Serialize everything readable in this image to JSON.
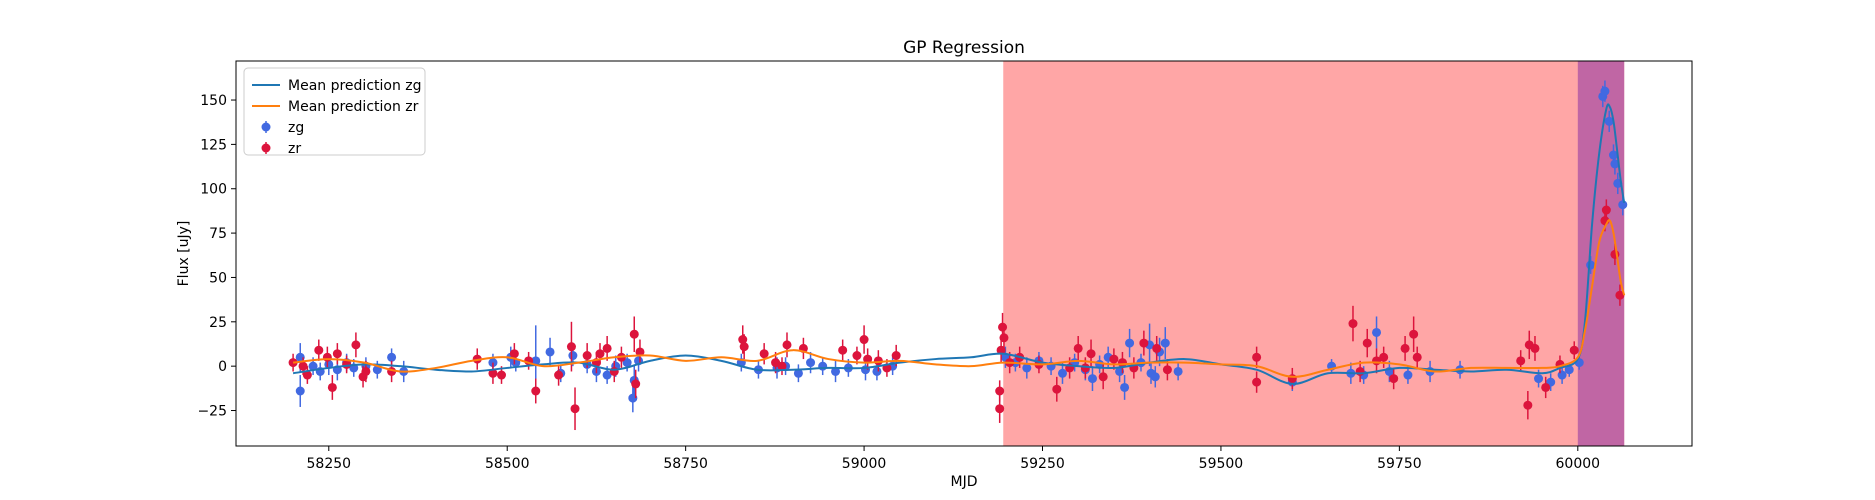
{
  "chart_data": {
    "type": "scatter",
    "title": "GP Regression",
    "xlabel": "MJD",
    "ylabel": "Flux [uJy]",
    "xlim": [
      58120,
      60160
    ],
    "ylim": [
      -45,
      172
    ],
    "xticks": [
      58250,
      58500,
      58750,
      59000,
      59250,
      59500,
      59750,
      60000
    ],
    "yticks": [
      -25,
      0,
      25,
      50,
      75,
      100,
      125,
      150
    ],
    "legend_position": "upper-left",
    "grid": false,
    "shaded_regions": [
      {
        "x0": 59195,
        "x1": 60065,
        "color": "#ffa6a6"
      },
      {
        "x0": 60000,
        "x1": 60065,
        "color": "#c066a4"
      }
    ],
    "lines": [
      {
        "name": "Mean prediction zg",
        "color": "#1f77b4",
        "x": [
          58200,
          58250,
          58300,
          58350,
          58400,
          58450,
          58500,
          58550,
          58600,
          58650,
          58700,
          58750,
          58800,
          58850,
          58900,
          58950,
          59000,
          59050,
          59100,
          59150,
          59195,
          59250,
          59300,
          59350,
          59400,
          59450,
          59500,
          59550,
          59600,
          59650,
          59700,
          59750,
          59800,
          59850,
          59900,
          59950,
          59975,
          60000,
          60010,
          60020,
          60030,
          60040,
          60045,
          60050,
          60055,
          60060,
          60065
        ],
        "y": [
          -4,
          -1,
          1,
          0,
          -2,
          -3,
          -1,
          1,
          2,
          -2,
          3,
          6,
          3,
          -2,
          -2,
          -1,
          -1,
          2,
          4,
          5,
          7,
          2,
          0,
          -1,
          2,
          4,
          1,
          -2,
          -10,
          -4,
          -4,
          -1,
          -2,
          -3,
          -2,
          -4,
          -1,
          4,
          25,
          80,
          120,
          145,
          146,
          138,
          122,
          105,
          92
        ]
      },
      {
        "name": "Mean prediction zr",
        "color": "#ff7f0e",
        "x": [
          58200,
          58250,
          58300,
          58350,
          58400,
          58450,
          58500,
          58550,
          58600,
          58650,
          58700,
          58750,
          58800,
          58850,
          58900,
          58950,
          59000,
          59050,
          59100,
          59150,
          59195,
          59250,
          59300,
          59350,
          59400,
          59450,
          59500,
          59550,
          59600,
          59650,
          59700,
          59750,
          59800,
          59850,
          59900,
          59950,
          59975,
          60000,
          60010,
          60020,
          60030,
          60040,
          60045,
          60050,
          60055,
          60060,
          60065
        ],
        "y": [
          2,
          4,
          2,
          -3,
          -1,
          3,
          5,
          0,
          2,
          5,
          6,
          3,
          5,
          3,
          9,
          4,
          2,
          3,
          1,
          0,
          2,
          1,
          3,
          1,
          2,
          2,
          1,
          0,
          -6,
          -2,
          2,
          1,
          -3,
          -1,
          -1,
          -1,
          0,
          5,
          20,
          45,
          70,
          80,
          82,
          75,
          62,
          48,
          40
        ]
      }
    ],
    "series": [
      {
        "name": "zg",
        "color": "#4169e1",
        "points": [
          [
            58210,
            5,
            8
          ],
          [
            58210,
            -14,
            9
          ],
          [
            58228,
            0,
            5
          ],
          [
            58238,
            -3,
            5
          ],
          [
            58250,
            1,
            6
          ],
          [
            58262,
            -2,
            6
          ],
          [
            58275,
            2,
            5
          ],
          [
            58285,
            -1,
            5
          ],
          [
            58302,
            0,
            5
          ],
          [
            58318,
            -2,
            5
          ],
          [
            58338,
            5,
            5
          ],
          [
            58355,
            -3,
            6
          ],
          [
            58480,
            2,
            5
          ],
          [
            58505,
            5,
            6
          ],
          [
            58512,
            2,
            5
          ],
          [
            58540,
            3,
            20
          ],
          [
            58560,
            8,
            8
          ],
          [
            58575,
            -4,
            5
          ],
          [
            58592,
            6,
            6
          ],
          [
            58612,
            1,
            5
          ],
          [
            58625,
            -3,
            6
          ],
          [
            58640,
            -5,
            5
          ],
          [
            58652,
            0,
            6
          ],
          [
            58668,
            2,
            5
          ],
          [
            58676,
            -18,
            8
          ],
          [
            58684,
            3,
            6
          ],
          [
            58678,
            -8,
            9
          ],
          [
            58828,
            2,
            5
          ],
          [
            58852,
            -2,
            5
          ],
          [
            58878,
            -1,
            6
          ],
          [
            58890,
            0,
            5
          ],
          [
            58908,
            -4,
            5
          ],
          [
            58925,
            2,
            6
          ],
          [
            58942,
            0,
            5
          ],
          [
            58960,
            -3,
            6
          ],
          [
            58978,
            -1,
            5
          ],
          [
            59002,
            -2,
            6
          ],
          [
            59018,
            -3,
            5
          ],
          [
            59040,
            0,
            5
          ],
          [
            59198,
            5,
            6
          ],
          [
            59212,
            2,
            5
          ],
          [
            59228,
            -1,
            6
          ],
          [
            59245,
            3,
            5
          ],
          [
            59262,
            0,
            5
          ],
          [
            59278,
            -4,
            6
          ],
          [
            59295,
            2,
            5
          ],
          [
            59310,
            -2,
            6
          ],
          [
            59320,
            -7,
            7
          ],
          [
            59330,
            1,
            5
          ],
          [
            59342,
            5,
            6
          ],
          [
            59358,
            -3,
            6
          ],
          [
            59365,
            -12,
            7
          ],
          [
            59372,
            13,
            8
          ],
          [
            59388,
            2,
            5
          ],
          [
            59402,
            -4,
            6
          ],
          [
            59408,
            -6,
            6
          ],
          [
            59414,
            8,
            8
          ],
          [
            59422,
            13,
            9
          ],
          [
            59400,
            12,
            12
          ],
          [
            59440,
            -3,
            5
          ],
          [
            59600,
            -9,
            5
          ],
          [
            59655,
            0,
            4
          ],
          [
            59682,
            -4,
            6
          ],
          [
            59700,
            -5,
            5
          ],
          [
            59718,
            19,
            9
          ],
          [
            59736,
            -3,
            6
          ],
          [
            59762,
            -5,
            5
          ],
          [
            59793,
            -3,
            6
          ],
          [
            59835,
            -2,
            5
          ],
          [
            59945,
            -7,
            5
          ],
          [
            59962,
            -9,
            5
          ],
          [
            59978,
            -5,
            5
          ],
          [
            59988,
            -2,
            4
          ],
          [
            60002,
            2,
            4
          ],
          [
            60018,
            57,
            5
          ],
          [
            60035,
            152,
            6
          ],
          [
            60038,
            155,
            6
          ],
          [
            60044,
            138,
            6
          ],
          [
            60050,
            119,
            6
          ],
          [
            60052,
            114,
            6
          ],
          [
            60056,
            103,
            6
          ],
          [
            60063,
            91,
            6
          ]
        ]
      },
      {
        "name": "zr",
        "color": "#dc143c",
        "points": [
          [
            58200,
            2,
            5
          ],
          [
            58214,
            0,
            5
          ],
          [
            58220,
            -5,
            5
          ],
          [
            58236,
            9,
            6
          ],
          [
            58248,
            5,
            6
          ],
          [
            58255,
            -12,
            7
          ],
          [
            58262,
            7,
            6
          ],
          [
            58275,
            1,
            5
          ],
          [
            58288,
            12,
            7
          ],
          [
            58298,
            -6,
            6
          ],
          [
            58302,
            -3,
            6
          ],
          [
            58338,
            -3,
            6
          ],
          [
            58458,
            4,
            6
          ],
          [
            58480,
            -4,
            6
          ],
          [
            58492,
            -5,
            5
          ],
          [
            58510,
            7,
            6
          ],
          [
            58530,
            3,
            5
          ],
          [
            58540,
            -14,
            7
          ],
          [
            58572,
            -5,
            6
          ],
          [
            58590,
            11,
            14
          ],
          [
            58595,
            -24,
            12
          ],
          [
            58612,
            6,
            7
          ],
          [
            58625,
            2,
            6
          ],
          [
            58630,
            7,
            6
          ],
          [
            58640,
            10,
            7
          ],
          [
            58650,
            -3,
            6
          ],
          [
            58660,
            5,
            6
          ],
          [
            58678,
            18,
            10
          ],
          [
            58680,
            -10,
            8
          ],
          [
            58686,
            8,
            7
          ],
          [
            58830,
            15,
            8
          ],
          [
            58832,
            11,
            7
          ],
          [
            58860,
            7,
            6
          ],
          [
            58876,
            2,
            6
          ],
          [
            58885,
            0,
            5
          ],
          [
            58892,
            12,
            7
          ],
          [
            58915,
            10,
            6
          ],
          [
            58970,
            9,
            6
          ],
          [
            58990,
            6,
            5
          ],
          [
            59000,
            15,
            8
          ],
          [
            59005,
            4,
            6
          ],
          [
            59020,
            3,
            6
          ],
          [
            59032,
            -1,
            5
          ],
          [
            59045,
            6,
            6
          ],
          [
            59190,
            -14,
            6
          ],
          [
            59190,
            -24,
            8
          ],
          [
            59192,
            9,
            7
          ],
          [
            59194,
            22,
            8
          ],
          [
            59196,
            16,
            7
          ],
          [
            59204,
            2,
            6
          ],
          [
            59218,
            5,
            6
          ],
          [
            59245,
            1,
            5
          ],
          [
            59270,
            -13,
            7
          ],
          [
            59288,
            -1,
            6
          ],
          [
            59300,
            10,
            7
          ],
          [
            59310,
            -1,
            6
          ],
          [
            59318,
            7,
            8
          ],
          [
            59335,
            -6,
            7
          ],
          [
            59350,
            4,
            6
          ],
          [
            59362,
            2,
            6
          ],
          [
            59378,
            -1,
            6
          ],
          [
            59392,
            13,
            7
          ],
          [
            59410,
            10,
            7
          ],
          [
            59425,
            -2,
            6
          ],
          [
            59550,
            -9,
            6
          ],
          [
            59550,
            5,
            6
          ],
          [
            59600,
            -7,
            6
          ],
          [
            59685,
            24,
            10
          ],
          [
            59695,
            -3,
            6
          ],
          [
            59705,
            13,
            8
          ],
          [
            59718,
            3,
            7
          ],
          [
            59728,
            5,
            6
          ],
          [
            59742,
            -7,
            6
          ],
          [
            59758,
            10,
            7
          ],
          [
            59770,
            18,
            10
          ],
          [
            59775,
            5,
            6
          ],
          [
            59920,
            3,
            6
          ],
          [
            59930,
            -22,
            8
          ],
          [
            59932,
            12,
            8
          ],
          [
            59940,
            10,
            7
          ],
          [
            59955,
            -12,
            6
          ],
          [
            59975,
            1,
            5
          ],
          [
            59995,
            9,
            5
          ],
          [
            60038,
            82,
            6
          ],
          [
            60040,
            88,
            6
          ],
          [
            60052,
            63,
            6
          ],
          [
            60059,
            40,
            6
          ]
        ]
      }
    ]
  }
}
